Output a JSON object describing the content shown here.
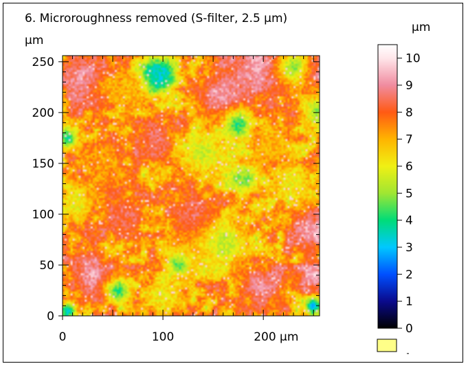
{
  "chart_data": {
    "type": "heatmap",
    "title": "6. Microroughness removed (S-filter, 2.5 µm)",
    "ylabel": "µm",
    "xlim": [
      0,
      256
    ],
    "ylim": [
      0,
      256
    ],
    "x_ticks": [
      "0",
      "100",
      "200 µm"
    ],
    "x_tick_values": [
      0,
      100,
      200
    ],
    "y_ticks": [
      "0",
      "50",
      "100",
      "150",
      "200",
      "250"
    ],
    "y_tick_values": [
      0,
      50,
      100,
      150,
      200,
      250
    ],
    "colorbar": {
      "unit": "µm",
      "range": [
        0,
        10.5
      ],
      "ticks": [
        "0",
        "1",
        "2",
        "3",
        "4",
        "5",
        "6",
        "7",
        "8",
        "9",
        "10"
      ],
      "tick_values": [
        0,
        1,
        2,
        3,
        4,
        5,
        6,
        7,
        8,
        9,
        10
      ],
      "stops": [
        {
          "v": 0,
          "color": "#000000"
        },
        {
          "v": 1,
          "color": "#0a0a8c"
        },
        {
          "v": 2,
          "color": "#0050ff"
        },
        {
          "v": 3,
          "color": "#00c8ff"
        },
        {
          "v": 4,
          "color": "#00dc78"
        },
        {
          "v": 5,
          "color": "#a0e632"
        },
        {
          "v": 6,
          "color": "#f0f014"
        },
        {
          "v": 7,
          "color": "#ffb400"
        },
        {
          "v": 8,
          "color": "#ff5a14"
        },
        {
          "v": 9,
          "color": "#f08ca0"
        },
        {
          "v": 10,
          "color": "#ffe6ea"
        },
        {
          "v": 10.5,
          "color": "#ffffff"
        }
      ]
    },
    "features": [
      {
        "x": 95,
        "y": 236,
        "r": 14,
        "v": 1.2
      },
      {
        "x": 95,
        "y": 236,
        "r": 24,
        "v": 3.5
      },
      {
        "x": 20,
        "y": 236,
        "r": 30,
        "v": 9.0
      },
      {
        "x": 195,
        "y": 245,
        "r": 38,
        "v": 9.3
      },
      {
        "x": 250,
        "y": 240,
        "r": 22,
        "v": 9.0
      },
      {
        "x": 160,
        "y": 215,
        "r": 30,
        "v": 9.2
      },
      {
        "x": 175,
        "y": 188,
        "r": 18,
        "v": 4.0
      },
      {
        "x": 230,
        "y": 245,
        "r": 20,
        "v": 5.0
      },
      {
        "x": 255,
        "y": 200,
        "r": 20,
        "v": 5.0
      },
      {
        "x": 5,
        "y": 175,
        "r": 14,
        "v": 4.0
      },
      {
        "x": 180,
        "y": 135,
        "r": 10,
        "v": 3.0
      },
      {
        "x": 180,
        "y": 135,
        "r": 20,
        "v": 5.0
      },
      {
        "x": 95,
        "y": 170,
        "r": 25,
        "v": 8.7
      },
      {
        "x": 140,
        "y": 160,
        "r": 30,
        "v": 5.6
      },
      {
        "x": 230,
        "y": 130,
        "r": 25,
        "v": 6.0
      },
      {
        "x": 10,
        "y": 110,
        "r": 20,
        "v": 6.0
      },
      {
        "x": 60,
        "y": 100,
        "r": 25,
        "v": 8.5
      },
      {
        "x": 130,
        "y": 95,
        "r": 30,
        "v": 8.7
      },
      {
        "x": 245,
        "y": 85,
        "r": 22,
        "v": 9.2
      },
      {
        "x": 255,
        "y": 80,
        "r": 10,
        "v": 9.6
      },
      {
        "x": 250,
        "y": 40,
        "r": 18,
        "v": 9.5
      },
      {
        "x": 160,
        "y": 70,
        "r": 30,
        "v": 5.5
      },
      {
        "x": 120,
        "y": 55,
        "r": 25,
        "v": 6.5
      },
      {
        "x": 115,
        "y": 50,
        "r": 12,
        "v": 4.5
      },
      {
        "x": 30,
        "y": 40,
        "r": 28,
        "v": 9.2
      },
      {
        "x": 200,
        "y": 30,
        "r": 26,
        "v": 9.0
      },
      {
        "x": 55,
        "y": 25,
        "r": 15,
        "v": 4.2
      },
      {
        "x": 100,
        "y": 20,
        "r": 22,
        "v": 6.0
      },
      {
        "x": 250,
        "y": 10,
        "r": 10,
        "v": 3.0
      },
      {
        "x": 5,
        "y": 5,
        "r": 10,
        "v": 3.0
      },
      {
        "x": 60,
        "y": 220,
        "r": 25,
        "v": 7.0
      },
      {
        "x": 40,
        "y": 150,
        "r": 25,
        "v": 7.2
      },
      {
        "x": 210,
        "y": 170,
        "r": 25,
        "v": 7.0
      }
    ]
  },
  "legend_swatch_color": "#ffff88"
}
